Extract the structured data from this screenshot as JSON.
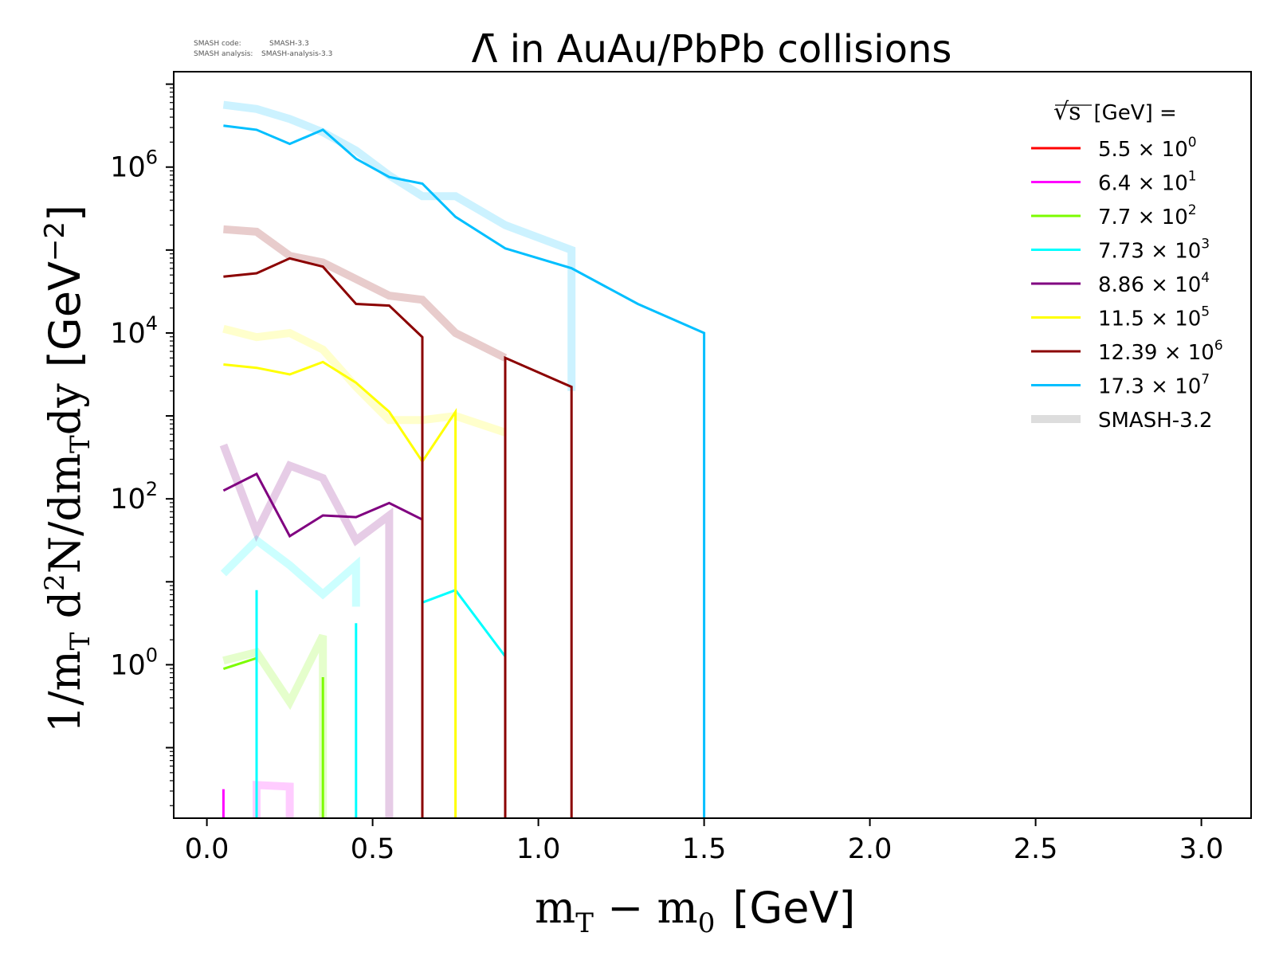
{
  "header": {
    "code_label": "SMASH code:",
    "code_value": "SMASH-3.3",
    "analysis_label": "SMASH analysis:",
    "analysis_value": "SMASH-analysis-3.3"
  },
  "chart_data": {
    "type": "line",
    "title": "Λ̄ in AuAu/PbPb collisions",
    "xlabel": "m_T − m_0 [GeV]",
    "xlabel_parts": {
      "main": "m",
      "sub": "T",
      "minus": " − m",
      "sub2": "0",
      "unit": "[GeV]"
    },
    "ylabel": "1/m_T d²N/dm_Tdy [GeV⁻²]",
    "ylabel_parts": {
      "a": "1/m",
      "b": "T",
      "c": " d",
      "d": "2",
      "e": "N/dm",
      "f": "T",
      "g": "dy",
      "unit": "[GeV",
      "exp": "−2",
      "close": "]"
    },
    "xlim": [
      -0.1,
      3.15
    ],
    "ylim_log10": [
      -1.85,
      7.15
    ],
    "yscale": "log",
    "xticks": [
      "0.0",
      "0.5",
      "1.0",
      "1.5",
      "2.0",
      "2.5",
      "3.0"
    ],
    "xtick_values": [
      0,
      0.5,
      1.0,
      1.5,
      2.0,
      2.5,
      3.0
    ],
    "yticks": [
      {
        "value_log10": 0,
        "base": "10",
        "exp": "0"
      },
      {
        "value_log10": 2,
        "base": "10",
        "exp": "2"
      },
      {
        "value_log10": 4,
        "base": "10",
        "exp": "4"
      },
      {
        "value_log10": 6,
        "base": "10",
        "exp": "6"
      }
    ],
    "legend": {
      "title": "√s  [GeV] =",
      "title_symbol": "√s",
      "title_rest": "[GeV] =",
      "position": "top-right",
      "entries": [
        {
          "label": "5.5 × 10⁰",
          "mant": "5.5",
          "exp": "0",
          "color": "#ff0000"
        },
        {
          "label": "6.4 × 10¹",
          "mant": "6.4",
          "exp": "1",
          "color": "#ff00ff"
        },
        {
          "label": "7.7 × 10²",
          "mant": "7.7",
          "exp": "2",
          "color": "#7cfc00"
        },
        {
          "label": "7.73 × 10³",
          "mant": "7.73",
          "exp": "3",
          "color": "#00ffff"
        },
        {
          "label": "8.86 × 10⁴",
          "mant": "8.86",
          "exp": "4",
          "color": "#800080"
        },
        {
          "label": "11.5 × 10⁵",
          "mant": "11.5",
          "exp": "5",
          "color": "#ffff00"
        },
        {
          "label": "12.39 × 10⁶",
          "mant": "12.39",
          "exp": "6",
          "color": "#8b0000"
        },
        {
          "label": "17.3 × 10⁷",
          "mant": "17.3",
          "exp": "7",
          "color": "#00bfff"
        },
        {
          "label": "SMASH-3.2",
          "mant": "SMASH-3.2",
          "exp": "",
          "color": "#dddddd"
        }
      ]
    },
    "series": [
      {
        "name": "6.4 × 10¹",
        "color": "#ff00ff",
        "kind": "current",
        "points": [
          [
            0.05,
            -1.85
          ],
          [
            0.05,
            -1.5
          ]
        ]
      },
      {
        "name": "6.4 × 10¹ (SMASH-3.2)",
        "color": "#ff00ff",
        "kind": "reference",
        "points": [
          [
            0.15,
            -1.85
          ],
          [
            0.15,
            -1.45
          ],
          [
            0.25,
            -1.47
          ],
          [
            0.25,
            -1.85
          ]
        ]
      },
      {
        "name": "7.7 × 10²",
        "color": "#7cfc00",
        "kind": "current",
        "points": [
          [
            0.05,
            -0.05
          ],
          [
            0.15,
            0.08
          ],
          [
            0.15,
            -1.85
          ]
        ]
      },
      {
        "name": "7.7 × 10² b",
        "color": "#7cfc00",
        "kind": "current",
        "points": [
          [
            0.35,
            -1.85
          ],
          [
            0.35,
            -0.15
          ]
        ]
      },
      {
        "name": "7.7 × 10² (SMASH-3.2)",
        "color": "#7cfc00",
        "kind": "reference",
        "points": [
          [
            0.05,
            0.05
          ],
          [
            0.15,
            0.15
          ],
          [
            0.25,
            -0.45
          ],
          [
            0.35,
            0.35
          ],
          [
            0.35,
            -1.85
          ]
        ]
      },
      {
        "name": "7.73 × 10³",
        "color": "#00ffff",
        "kind": "current",
        "points": [
          [
            0.15,
            -1.85
          ],
          [
            0.15,
            0.9
          ]
        ]
      },
      {
        "name": "7.73 × 10³ b",
        "color": "#00ffff",
        "kind": "current",
        "points": [
          [
            0.45,
            -1.85
          ],
          [
            0.45,
            0.5
          ]
        ]
      },
      {
        "name": "7.73 × 10³ c",
        "color": "#00ffff",
        "kind": "current",
        "points": [
          [
            0.65,
            0.75
          ],
          [
            0.75,
            0.9
          ],
          [
            0.9,
            0.1
          ]
        ]
      },
      {
        "name": "7.73 × 10³ (SMASH-3.2)",
        "color": "#00ffff",
        "kind": "reference",
        "points": [
          [
            0.05,
            1.1
          ],
          [
            0.15,
            1.5
          ],
          [
            0.25,
            1.2
          ],
          [
            0.35,
            0.85
          ],
          [
            0.45,
            1.2
          ],
          [
            0.45,
            0.7
          ]
        ]
      },
      {
        "name": "8.86 × 10⁴",
        "color": "#800080",
        "kind": "current",
        "points": [
          [
            0.05,
            2.1
          ],
          [
            0.15,
            2.3
          ],
          [
            0.25,
            1.55
          ],
          [
            0.35,
            1.8
          ],
          [
            0.45,
            1.78
          ],
          [
            0.55,
            1.95
          ],
          [
            0.65,
            1.75
          ]
        ]
      },
      {
        "name": "8.86 × 10⁴ (SMASH-3.2)",
        "color": "#800080",
        "kind": "reference",
        "points": [
          [
            0.05,
            2.65
          ],
          [
            0.15,
            1.6
          ],
          [
            0.25,
            2.4
          ],
          [
            0.35,
            2.25
          ],
          [
            0.45,
            1.5
          ],
          [
            0.55,
            1.8
          ],
          [
            0.55,
            -1.85
          ]
        ]
      },
      {
        "name": "11.5 × 10⁵",
        "color": "#ffff00",
        "kind": "current",
        "points": [
          [
            0.05,
            3.62
          ],
          [
            0.15,
            3.58
          ],
          [
            0.25,
            3.5
          ],
          [
            0.35,
            3.65
          ],
          [
            0.45,
            3.4
          ],
          [
            0.55,
            3.05
          ],
          [
            0.65,
            2.45
          ],
          [
            0.75,
            3.05
          ],
          [
            0.75,
            -1.85
          ]
        ]
      },
      {
        "name": "11.5 × 10⁵ (SMASH-3.2)",
        "color": "#ffff00",
        "kind": "reference",
        "points": [
          [
            0.05,
            4.05
          ],
          [
            0.15,
            3.95
          ],
          [
            0.25,
            4.0
          ],
          [
            0.35,
            3.8
          ],
          [
            0.45,
            3.35
          ],
          [
            0.55,
            2.95
          ],
          [
            0.65,
            2.95
          ],
          [
            0.75,
            3.0
          ],
          [
            0.9,
            2.8
          ]
        ]
      },
      {
        "name": "12.39 × 10⁶",
        "color": "#8b0000",
        "kind": "current",
        "points": [
          [
            0.05,
            4.68
          ],
          [
            0.15,
            4.72
          ],
          [
            0.25,
            4.9
          ],
          [
            0.35,
            4.8
          ],
          [
            0.45,
            4.35
          ],
          [
            0.55,
            4.33
          ],
          [
            0.65,
            3.95
          ],
          [
            0.65,
            -1.85
          ]
        ]
      },
      {
        "name": "12.39 × 10⁶ b",
        "color": "#8b0000",
        "kind": "current",
        "points": [
          [
            0.9,
            -1.85
          ],
          [
            0.9,
            3.7
          ],
          [
            1.1,
            3.35
          ],
          [
            1.1,
            -1.85
          ]
        ]
      },
      {
        "name": "12.39 × 10⁶ (SMASH-3.2)",
        "color": "#8b0000",
        "kind": "reference",
        "points": [
          [
            0.05,
            5.25
          ],
          [
            0.15,
            5.22
          ],
          [
            0.25,
            4.93
          ],
          [
            0.35,
            4.85
          ],
          [
            0.45,
            4.65
          ],
          [
            0.55,
            4.45
          ],
          [
            0.65,
            4.4
          ],
          [
            0.75,
            4.0
          ],
          [
            0.9,
            3.7
          ]
        ]
      },
      {
        "name": "17.3 × 10⁷",
        "color": "#00bfff",
        "kind": "current",
        "points": [
          [
            0.05,
            6.5
          ],
          [
            0.15,
            6.45
          ],
          [
            0.25,
            6.28
          ],
          [
            0.35,
            6.45
          ],
          [
            0.45,
            6.1
          ],
          [
            0.55,
            5.88
          ],
          [
            0.65,
            5.8
          ],
          [
            0.75,
            5.4
          ],
          [
            0.9,
            5.02
          ],
          [
            1.1,
            4.78
          ],
          [
            1.3,
            4.35
          ],
          [
            1.5,
            4.0
          ],
          [
            1.5,
            -1.85
          ]
        ]
      },
      {
        "name": "17.3 × 10⁷ (SMASH-3.2)",
        "color": "#00bfff",
        "kind": "reference",
        "points": [
          [
            0.05,
            6.75
          ],
          [
            0.15,
            6.7
          ],
          [
            0.25,
            6.58
          ],
          [
            0.35,
            6.42
          ],
          [
            0.45,
            6.2
          ],
          [
            0.55,
            5.9
          ],
          [
            0.65,
            5.65
          ],
          [
            0.75,
            5.65
          ],
          [
            0.9,
            5.3
          ],
          [
            1.1,
            5.0
          ],
          [
            1.1,
            3.3
          ]
        ]
      }
    ]
  }
}
